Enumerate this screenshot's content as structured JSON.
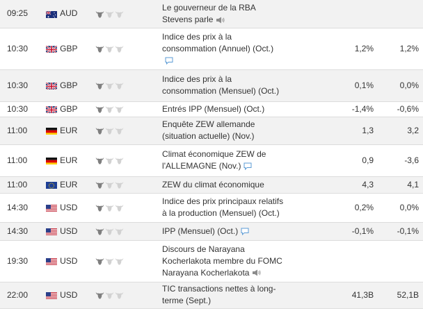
{
  "rows": [
    {
      "time": "09:25",
      "flag": "australia-flag",
      "currency": "AUD",
      "importance": 1,
      "event_lines": [
        "Le gouverneur de la RBA",
        "Stevens parle"
      ],
      "icon": "speaker-icon",
      "actual": "",
      "forecast": ""
    },
    {
      "time": "10:30",
      "flag": "uk-flag",
      "currency": "GBP",
      "importance": 1,
      "event_lines": [
        "Indice des prix à la",
        "consommation (Annuel) (Oct.)"
      ],
      "icon": "comment-icon",
      "icon_line": "below",
      "actual": "1,2%",
      "forecast": "1,2%"
    },
    {
      "time": "10:30",
      "flag": "uk-flag",
      "currency": "GBP",
      "importance": 1,
      "event_lines": [
        "Indice des prix à la",
        "consommation (Mensuel) (Oct.)"
      ],
      "icon": "",
      "actual": "0,1%",
      "forecast": "0,0%"
    },
    {
      "time": "10:30",
      "flag": "uk-flag",
      "currency": "GBP",
      "importance": 1,
      "event_lines": [
        "Entrés IPP (Mensuel) (Oct.)"
      ],
      "icon": "",
      "actual": "-1,4%",
      "forecast": "-0,6%"
    },
    {
      "time": "11:00",
      "flag": "germany-flag",
      "currency": "EUR",
      "importance": 1,
      "event_lines": [
        "Enquête ZEW allemande",
        "(situation actuelle) (Nov.)"
      ],
      "icon": "",
      "actual": "1,3",
      "forecast": "3,2"
    },
    {
      "time": "11:00",
      "flag": "germany-flag",
      "currency": "EUR",
      "importance": 1,
      "event_lines": [
        "Climat économique ZEW de",
        "l'ALLEMAGNE (Nov.)"
      ],
      "icon": "comment-icon",
      "actual": "0,9",
      "forecast": "-3,6"
    },
    {
      "time": "11:00",
      "flag": "eu-flag",
      "currency": "EUR",
      "importance": 1,
      "event_lines": [
        "ZEW du climat économique"
      ],
      "icon": "",
      "actual": "4,3",
      "forecast": "4,1"
    },
    {
      "time": "14:30",
      "flag": "us-flag",
      "currency": "USD",
      "importance": 1,
      "event_lines": [
        "Indice des prix principaux relatifs",
        "à la production (Mensuel) (Oct.)"
      ],
      "icon": "",
      "actual": "0,2%",
      "forecast": "0,0%"
    },
    {
      "time": "14:30",
      "flag": "us-flag",
      "currency": "USD",
      "importance": 1,
      "event_lines": [
        "IPP (Mensuel) (Oct.)"
      ],
      "icon": "comment-icon",
      "actual": "-0,1%",
      "forecast": "-0,1%"
    },
    {
      "time": "19:30",
      "flag": "us-flag",
      "currency": "USD",
      "importance": 1,
      "event_lines": [
        "Discours de Narayana",
        "Kocherlakota membre du FOMC",
        "Narayana Kocherlakota"
      ],
      "icon": "speaker-icon",
      "actual": "",
      "forecast": ""
    },
    {
      "time": "22:00",
      "flag": "us-flag",
      "currency": "USD",
      "importance": 1,
      "event_lines": [
        "TIC transactions nettes à long-",
        "terme (Sept.)"
      ],
      "icon": "",
      "actual": "41,3B",
      "forecast": "52,1B"
    }
  ],
  "row_heights": [
    40,
    60,
    46,
    22,
    40,
    46,
    24,
    42,
    26,
    60,
    38
  ],
  "colors": {
    "bull_active": "#7f7f7f",
    "bull_inactive": "#d2d2d2",
    "comment_icon": "#5b9bd5",
    "speaker_icon": "#8c8c8c"
  }
}
